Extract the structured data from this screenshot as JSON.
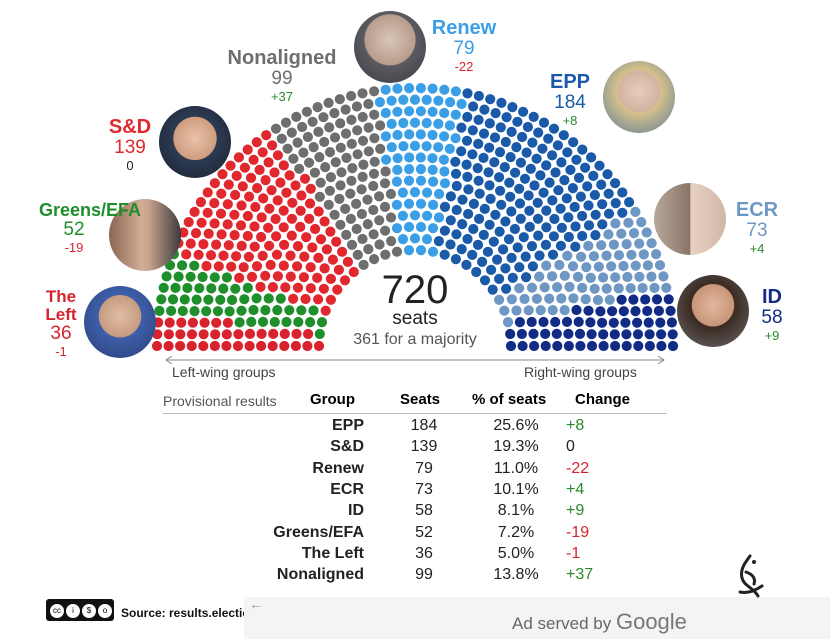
{
  "chart_data": {
    "type": "parliament",
    "total_seats": 720,
    "total_label": "720",
    "seats_label": "seats",
    "majority_label": "361 for a majority",
    "left_label": "Left-wing groups",
    "right_label": "Right-wing groups",
    "groups": [
      {
        "name": "The Left",
        "seats": 36,
        "seats_label": "36",
        "change": "-1",
        "color": "#d8232e"
      },
      {
        "name": "Greens/EFA",
        "seats": 52,
        "seats_label": "52",
        "change": "-19",
        "color": "#1e8f2b"
      },
      {
        "name": "S&D",
        "seats": 139,
        "seats_label": "139",
        "change": "0",
        "color": "#e2282f"
      },
      {
        "name": "Nonaligned",
        "seats": 99,
        "seats_label": "99",
        "change": "+37",
        "color": "#6e6e6e"
      },
      {
        "name": "Renew",
        "seats": 79,
        "seats_label": "79",
        "change": "-22",
        "color": "#3a9fe6"
      },
      {
        "name": "EPP",
        "seats": 184,
        "seats_label": "184",
        "change": "+8",
        "color": "#1a5aa8"
      },
      {
        "name": "ECR",
        "seats": 73,
        "seats_label": "73",
        "change": "+4",
        "color": "#6e97c4"
      },
      {
        "name": "ID",
        "seats": 58,
        "seats_label": "58",
        "change": "+9",
        "color": "#122c86"
      }
    ]
  },
  "table": {
    "caption": "Provisional results",
    "headers": {
      "group": "Group",
      "seats": "Seats",
      "pct": "% of seats",
      "change": "Change"
    },
    "rows": [
      {
        "group": "EPP",
        "seats": "184",
        "pct": "25.6%",
        "change": "+8",
        "dir": "up"
      },
      {
        "group": "S&D",
        "seats": "139",
        "pct": "19.3%",
        "change": "0",
        "dir": "flat"
      },
      {
        "group": "Renew",
        "seats": "79",
        "pct": "11.0%",
        "change": "-22",
        "dir": "down"
      },
      {
        "group": "ECR",
        "seats": "73",
        "pct": "10.1%",
        "change": "+4",
        "dir": "up"
      },
      {
        "group": "ID",
        "seats": "58",
        "pct": "8.1%",
        "change": "+9",
        "dir": "up"
      },
      {
        "group": "Greens/EFA",
        "seats": "52",
        "pct": "7.2%",
        "change": "-19",
        "dir": "down"
      },
      {
        "group": "The Left",
        "seats": "36",
        "pct": "5.0%",
        "change": "-1",
        "dir": "down"
      },
      {
        "group": "Nonaligned",
        "seats": "99",
        "pct": "13.8%",
        "change": "+37",
        "dir": "up"
      }
    ]
  },
  "colors": {
    "up": "#2a8a2a",
    "down": "#d8232e",
    "flat": "#222222"
  },
  "footer": {
    "source": "Source: results.electio",
    "ad_text": "Ad served by",
    "ad_brand": "Google",
    "license": "cc-by-nc-sa-badge",
    "logo": "al-jazeera-logo"
  }
}
